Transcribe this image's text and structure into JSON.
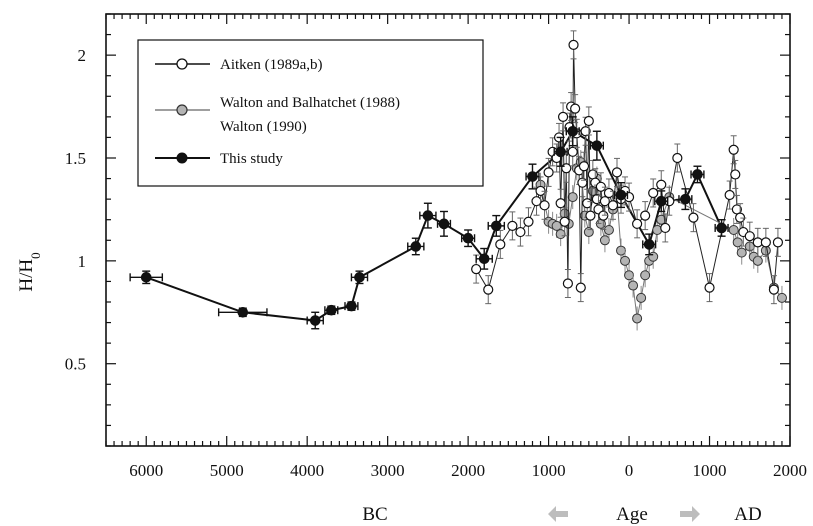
{
  "chart_data": {
    "type": "scatter",
    "ylabel": "H/H",
    "ylabel_subscript": "0",
    "xlabel": "Age",
    "x_direction_labels": {
      "left": "BC",
      "right": "AD"
    },
    "x_ticks": [
      -6000,
      -5000,
      -4000,
      -3000,
      -2000,
      -1000,
      0,
      1000,
      2000
    ],
    "x_tick_labels": [
      "6000",
      "5000",
      "4000",
      "3000",
      "2000",
      "1000",
      "0",
      "1000",
      "2000"
    ],
    "y_ticks": [
      0.5,
      1,
      1.5,
      2
    ],
    "y_tick_labels": [
      "0.5",
      "1",
      "1.5",
      "2"
    ],
    "xlim": [
      -6500,
      2000
    ],
    "ylim": [
      0.1,
      2.2
    ],
    "grid": false,
    "legend_position": "top-left",
    "colors": {
      "aitken": "#ffffff",
      "walton": "#b4b4b4",
      "this_study": "#111111",
      "arrow": "#bdbdbd"
    },
    "series": [
      {
        "name": "Aitken (1989a,b)",
        "x": [
          -1900,
          -1750,
          -1600,
          -1450,
          -1350,
          -1250,
          -1150,
          -1100,
          -1050,
          -1000,
          -950,
          -900,
          -870,
          -850,
          -820,
          -800,
          -780,
          -760,
          -740,
          -720,
          -700,
          -690,
          -670,
          -650,
          -620,
          -600,
          -580,
          -560,
          -540,
          -520,
          -500,
          -480,
          -450,
          -420,
          -400,
          -380,
          -350,
          -320,
          -300,
          -250,
          -200,
          -150,
          -100,
          -50,
          0,
          100,
          200,
          300,
          400,
          450,
          500,
          600,
          800,
          1000,
          1250,
          1300,
          1320,
          1340,
          1380,
          1420,
          1500,
          1600,
          1700,
          1800,
          1850
        ],
        "y": [
          0.96,
          0.86,
          1.08,
          1.17,
          1.14,
          1.19,
          1.29,
          1.34,
          1.27,
          1.43,
          1.53,
          1.5,
          1.6,
          1.28,
          1.7,
          1.19,
          1.45,
          0.89,
          1.65,
          1.75,
          1.53,
          2.05,
          1.74,
          1.62,
          1.44,
          0.87,
          1.38,
          1.46,
          1.63,
          1.28,
          1.68,
          1.22,
          1.42,
          1.38,
          1.3,
          1.25,
          1.36,
          1.22,
          1.29,
          1.33,
          1.27,
          1.43,
          1.3,
          1.34,
          1.31,
          1.18,
          1.22,
          1.33,
          1.37,
          1.16,
          1.29,
          1.5,
          1.21,
          0.87,
          1.32,
          1.54,
          1.42,
          1.25,
          1.21,
          1.14,
          1.12,
          1.09,
          1.09,
          0.86,
          1.09
        ]
      },
      {
        "name": "Walton and Balhatchet (1988)\nWalton (1990)",
        "x": [
          -1100,
          -1000,
          -950,
          -900,
          -850,
          -800,
          -750,
          -700,
          -650,
          -600,
          -550,
          -500,
          -450,
          -400,
          -350,
          -300,
          -250,
          -200,
          -150,
          -100,
          -50,
          0,
          50,
          100,
          150,
          200,
          250,
          300,
          350,
          400,
          500,
          1300,
          1350,
          1400,
          1500,
          1550,
          1600,
          1700,
          1800,
          1900
        ],
        "y": [
          1.37,
          1.19,
          1.18,
          1.17,
          1.13,
          1.23,
          1.18,
          1.31,
          1.45,
          1.48,
          1.22,
          1.14,
          1.34,
          1.4,
          1.18,
          1.1,
          1.15,
          1.25,
          1.31,
          1.05,
          1.0,
          0.93,
          0.88,
          0.72,
          0.82,
          0.93,
          1.0,
          1.02,
          1.15,
          1.2,
          1.31,
          1.15,
          1.09,
          1.04,
          1.07,
          1.02,
          1.0,
          1.05,
          0.87,
          0.82
        ]
      },
      {
        "name": "This study",
        "x": [
          -6000,
          -4800,
          -3900,
          -3700,
          -3450,
          -3350,
          -2650,
          -2500,
          -2300,
          -2000,
          -1800,
          -1650,
          -1200,
          -850,
          -700,
          -400,
          -100,
          250,
          400,
          700,
          850,
          1150
        ],
        "y": [
          0.92,
          0.75,
          0.71,
          0.76,
          0.78,
          0.92,
          1.07,
          1.22,
          1.18,
          1.11,
          1.01,
          1.17,
          1.41,
          1.53,
          1.63,
          1.56,
          1.32,
          1.08,
          1.29,
          1.3,
          1.42,
          1.16
        ],
        "y_error": [
          0.03,
          0.02,
          0.04,
          0.02,
          0.02,
          0.03,
          0.04,
          0.06,
          0.06,
          0.04,
          0.05,
          0.05,
          0.06,
          0.07,
          0.07,
          0.07,
          0.06,
          0.05,
          0.05,
          0.05,
          0.04,
          0.04
        ],
        "x_error": [
          200,
          300,
          100,
          80,
          80,
          100,
          100,
          100,
          80,
          80,
          100,
          100,
          80,
          80,
          80,
          80,
          80,
          80,
          80,
          80,
          80,
          80
        ]
      }
    ]
  }
}
